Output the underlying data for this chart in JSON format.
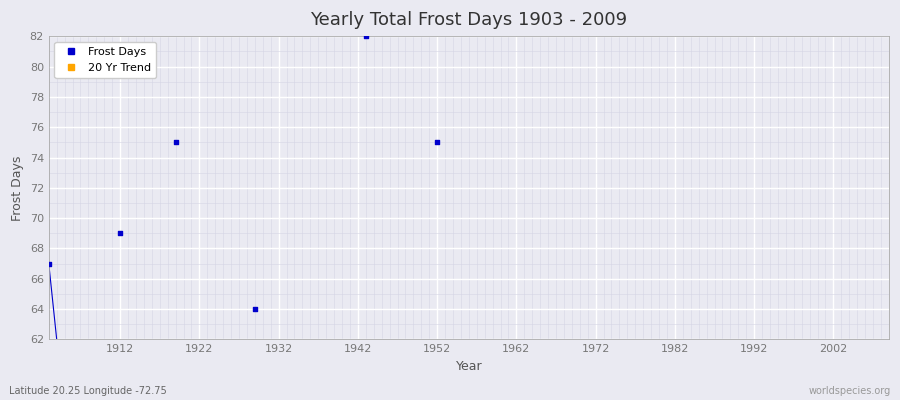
{
  "title": "Yearly Total Frost Days 1903 - 2009",
  "xlabel": "Year",
  "ylabel": "Frost Days",
  "subtitle_left": "Latitude 20.25 Longitude -72.75",
  "subtitle_right": "worldspecies.org",
  "xlim": [
    1903,
    2009
  ],
  "ylim": [
    62,
    82
  ],
  "yticks": [
    62,
    64,
    66,
    68,
    70,
    72,
    74,
    76,
    78,
    80,
    82
  ],
  "xticks": [
    1912,
    1922,
    1932,
    1942,
    1952,
    1962,
    1972,
    1982,
    1992,
    2002
  ],
  "frost_days_x": [
    1903,
    1912,
    1919,
    1929,
    1943,
    1952
  ],
  "frost_days_y": [
    67,
    69,
    75,
    64,
    82,
    75
  ],
  "trend_x": [
    1903,
    1904
  ],
  "trend_y": [
    67,
    62
  ],
  "frost_color": "#0000cc",
  "trend_color": "#ffa500",
  "bg_color": "#eaeaf2",
  "grid_major_color": "#ffffff",
  "grid_minor_color": "#d5d5e5",
  "tick_color": "#777777",
  "title_color": "#333333",
  "label_color": "#555555",
  "legend_frost_label": "Frost Days",
  "legend_trend_label": "20 Yr Trend",
  "spine_color": "#aaaaaa"
}
